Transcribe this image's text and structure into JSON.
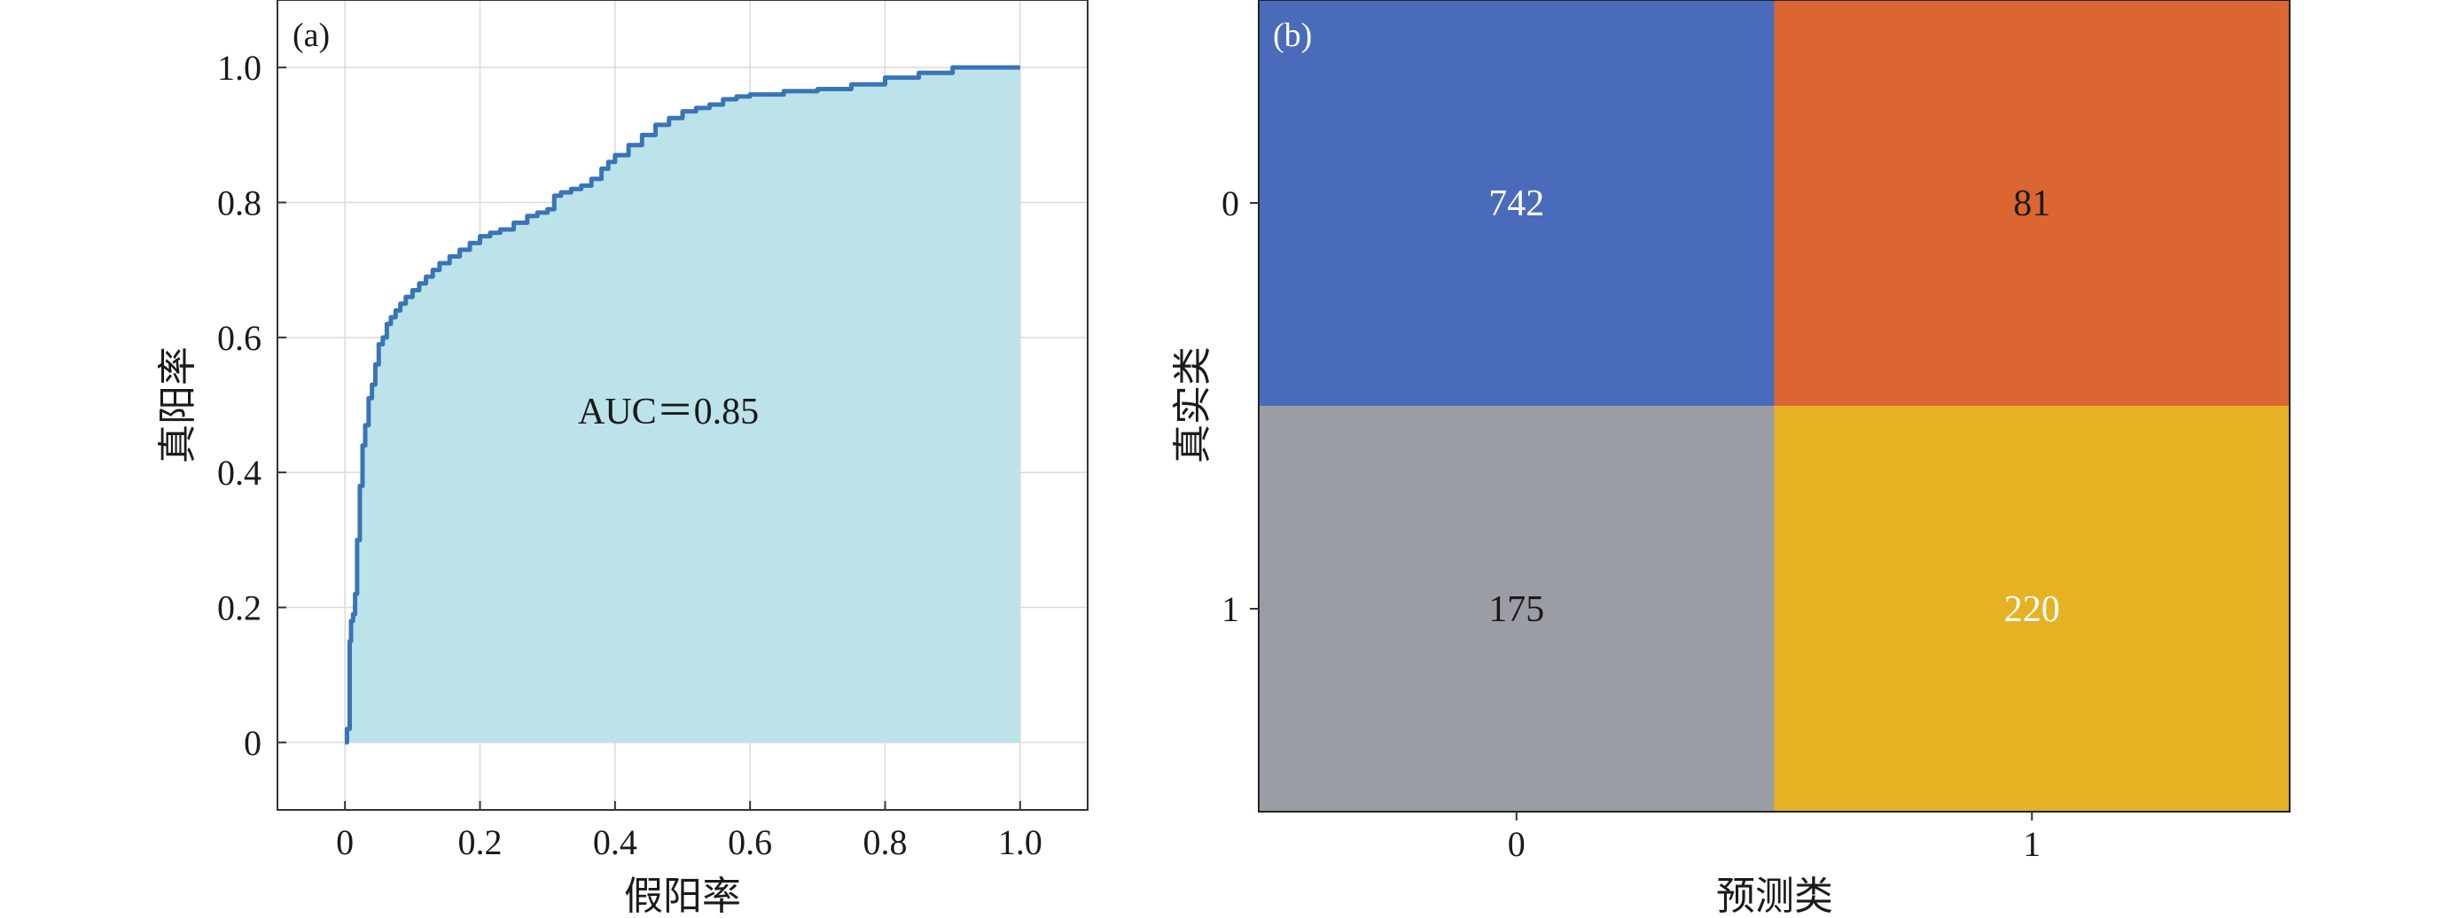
{
  "chart_data": [
    {
      "type": "area",
      "panel_label": "(a)",
      "xlabel": "假阳率",
      "ylabel": "真阳率",
      "xlim": [
        -0.1,
        1.1
      ],
      "ylim": [
        -0.1,
        1.1
      ],
      "xticks": [
        0,
        0.2,
        0.4,
        0.6,
        0.8,
        1.0
      ],
      "yticks": [
        0,
        0.2,
        0.4,
        0.6,
        0.8,
        1.0
      ],
      "xtick_labels": [
        "0",
        "0.2",
        "0.4",
        "0.6",
        "0.8",
        "1.0"
      ],
      "ytick_labels": [
        "0",
        "0.2",
        "0.4",
        "0.6",
        "0.8",
        "1.0"
      ],
      "grid": true,
      "annotation": "AUC＝0.85",
      "line_color": "#3a74b6",
      "fill_color": "#bce3ea",
      "x": [
        0,
        0.003,
        0.007,
        0.009,
        0.012,
        0.015,
        0.018,
        0.022,
        0.026,
        0.03,
        0.035,
        0.04,
        0.045,
        0.05,
        0.056,
        0.062,
        0.068,
        0.075,
        0.082,
        0.09,
        0.1,
        0.11,
        0.12,
        0.13,
        0.14,
        0.155,
        0.17,
        0.185,
        0.2,
        0.215,
        0.23,
        0.25,
        0.27,
        0.285,
        0.3,
        0.31,
        0.32,
        0.335,
        0.35,
        0.365,
        0.38,
        0.39,
        0.4,
        0.42,
        0.44,
        0.46,
        0.48,
        0.5,
        0.52,
        0.54,
        0.56,
        0.58,
        0.6,
        0.65,
        0.7,
        0.75,
        0.8,
        0.85,
        0.9,
        0.95,
        1.0
      ],
      "y": [
        0,
        0.02,
        0.15,
        0.18,
        0.19,
        0.22,
        0.3,
        0.38,
        0.44,
        0.47,
        0.51,
        0.53,
        0.56,
        0.59,
        0.6,
        0.62,
        0.63,
        0.64,
        0.65,
        0.66,
        0.67,
        0.68,
        0.69,
        0.7,
        0.71,
        0.72,
        0.73,
        0.74,
        0.75,
        0.755,
        0.76,
        0.77,
        0.78,
        0.785,
        0.79,
        0.81,
        0.815,
        0.82,
        0.825,
        0.835,
        0.85,
        0.86,
        0.87,
        0.885,
        0.9,
        0.915,
        0.925,
        0.935,
        0.94,
        0.945,
        0.953,
        0.957,
        0.96,
        0.965,
        0.968,
        0.975,
        0.985,
        0.992,
        1.0,
        1.0,
        1.0
      ]
    },
    {
      "type": "heatmap",
      "panel_label": "(b)",
      "xlabel": "预测类",
      "ylabel": "真实类",
      "x_categories": [
        "0",
        "1"
      ],
      "y_categories": [
        "0",
        "1"
      ],
      "cells": [
        {
          "row": 0,
          "col": 0,
          "label": "742",
          "value": 742,
          "color": "#4a6bba",
          "text_color": "#ffffff"
        },
        {
          "row": 0,
          "col": 1,
          "label": "81",
          "value": 81,
          "color": "#db6631",
          "text_color": "#1a1a1a"
        },
        {
          "row": 1,
          "col": 0,
          "label": "175",
          "value": 175,
          "color": "#9a9ea4",
          "text_color": "#1a1a1a"
        },
        {
          "row": 1,
          "col": 1,
          "label": "220",
          "value": 220,
          "color": "#e5b224",
          "text_color": "#ffffff"
        }
      ]
    }
  ]
}
